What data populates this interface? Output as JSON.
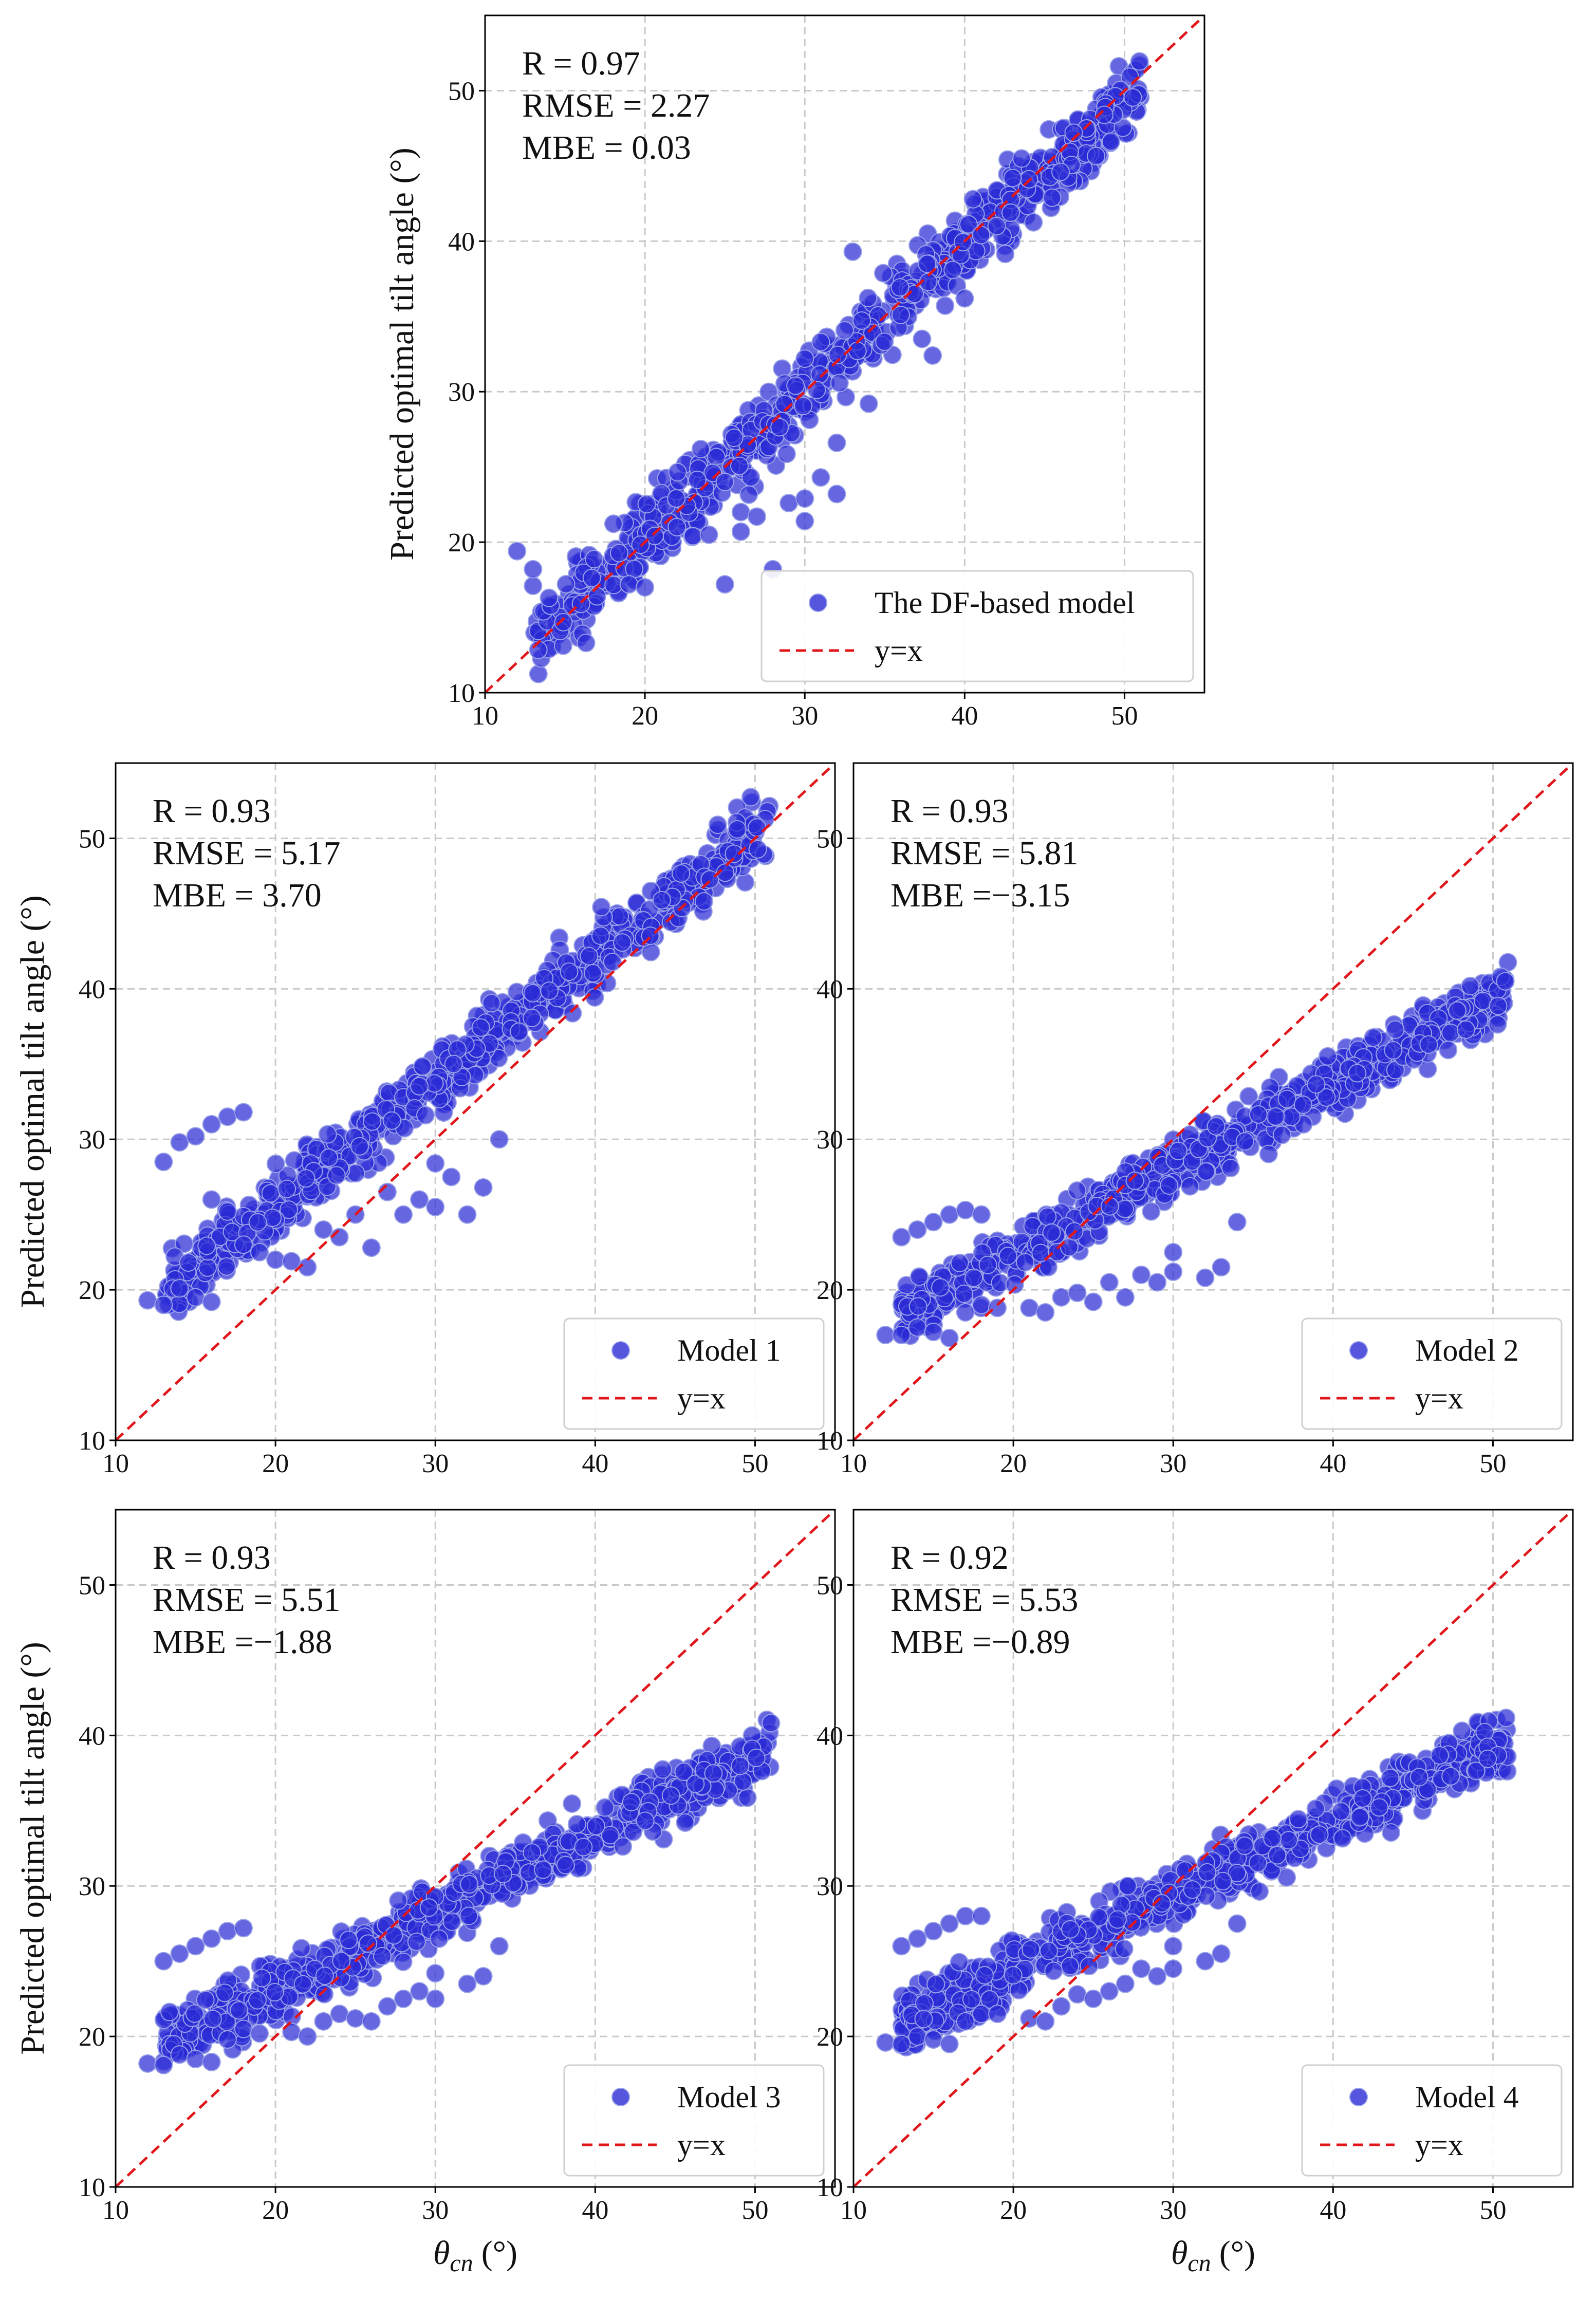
{
  "figure": {
    "xlabel_symbol": "θ",
    "xlabel_sub": "cn",
    "xlabel_unit": "(°)",
    "ylabel": "Predicted optimal tilt angle (°)"
  },
  "colors": {
    "points": "#2b2bd6",
    "point_edge": "#9aa2e8",
    "identity": "#e0161b",
    "grid": "#c9c9c9",
    "axis": "#000000"
  },
  "chart_data": [
    {
      "type": "scatter",
      "panel": "top",
      "title": "",
      "xlim": [
        10,
        55
      ],
      "ylim": [
        10,
        55
      ],
      "xticks": [
        10,
        20,
        30,
        40,
        50
      ],
      "yticks": [
        10,
        20,
        30,
        40,
        50
      ],
      "stats": {
        "r": "R = 0.97",
        "rmse": "RMSE = 2.27",
        "mbe": "MBE = 0.03"
      },
      "legend": {
        "series": "The DF-based model",
        "line": "y=x",
        "position": "lower-right"
      },
      "show_ylabel": true,
      "show_xlabel": false,
      "fit": {
        "slope": 0.96,
        "intercept": 1.2,
        "noise": 1.6
      },
      "outliers": [
        [
          12,
          19.4
        ],
        [
          13,
          17.1
        ],
        [
          14,
          16.3
        ],
        [
          13,
          18.2
        ],
        [
          16,
          15.9
        ],
        [
          17,
          16.4
        ],
        [
          19,
          17.2
        ],
        [
          20,
          17.0
        ],
        [
          22,
          21.0
        ],
        [
          23,
          20.4
        ],
        [
          24,
          20.5
        ],
        [
          25,
          17.2
        ],
        [
          25,
          24.0
        ],
        [
          26,
          22.0
        ],
        [
          26,
          20.7
        ],
        [
          27,
          21.7
        ],
        [
          28,
          18.2
        ],
        [
          29,
          22.6
        ],
        [
          30,
          21.4
        ],
        [
          31,
          24.3
        ],
        [
          30,
          22.9
        ],
        [
          32,
          26.6
        ],
        [
          32,
          23.2
        ],
        [
          33,
          39.3
        ],
        [
          31,
          33.3
        ],
        [
          34,
          29.2
        ],
        [
          36,
          35.1
        ],
        [
          38,
          32.4
        ],
        [
          40,
          36.2
        ],
        [
          42,
          41.0
        ],
        [
          43,
          44.2
        ],
        [
          46,
          44.6
        ]
      ]
    },
    {
      "type": "scatter",
      "panel": "model1",
      "title": "",
      "xlim": [
        10,
        55
      ],
      "ylim": [
        10,
        55
      ],
      "xticks": [
        10,
        20,
        30,
        40,
        50
      ],
      "yticks": [
        10,
        20,
        30,
        40,
        50
      ],
      "stats": {
        "r": "R = 0.93",
        "rmse": "RMSE = 5.17",
        "mbe": "MBE = 3.70"
      },
      "legend": {
        "series": "Model 1",
        "line": "y=x",
        "position": "lower-right"
      },
      "show_ylabel": true,
      "show_xlabel": false,
      "fit": {
        "slope": 0.82,
        "intercept": 9.3,
        "noise": 1.4
      },
      "outliers": [
        [
          12,
          19.3
        ],
        [
          13,
          19.0
        ],
        [
          14,
          20.1
        ],
        [
          15,
          19.5
        ],
        [
          16,
          19.2
        ],
        [
          13,
          28.5
        ],
        [
          14,
          29.8
        ],
        [
          15,
          30.2
        ],
        [
          16,
          31.0
        ],
        [
          17,
          31.5
        ],
        [
          18,
          31.8
        ],
        [
          16,
          26.0
        ],
        [
          17,
          25.2
        ],
        [
          18,
          23.0
        ],
        [
          19,
          22.5
        ],
        [
          20,
          22.0
        ],
        [
          21,
          21.9
        ],
        [
          22,
          21.5
        ],
        [
          23,
          24.0
        ],
        [
          24,
          23.5
        ],
        [
          25,
          25.0
        ],
        [
          26,
          22.8
        ],
        [
          27,
          26.5
        ],
        [
          28,
          25.0
        ],
        [
          29,
          26.0
        ],
        [
          30,
          25.5
        ],
        [
          31,
          27.5
        ],
        [
          32,
          25.0
        ],
        [
          33,
          26.8
        ],
        [
          34,
          30.0
        ],
        [
          30,
          28.4
        ]
      ]
    },
    {
      "type": "scatter",
      "panel": "model2",
      "title": "",
      "xlim": [
        10,
        55
      ],
      "ylim": [
        10,
        55
      ],
      "xticks": [
        10,
        20,
        30,
        40,
        50
      ],
      "yticks": [
        10,
        20,
        30,
        40,
        50
      ],
      "stats": {
        "r": "R = 0.93",
        "rmse": "RMSE = 5.81",
        "mbe": "MBE =−3.15"
      },
      "legend": {
        "series": "Model 2",
        "line": "y=x",
        "position": "lower-right"
      },
      "show_ylabel": false,
      "show_xlabel": false,
      "fit": {
        "slope": 0.56,
        "intercept": 11.3,
        "noise": 1.2
      },
      "outliers": [
        [
          12,
          17.0
        ],
        [
          13,
          17.0
        ],
        [
          14,
          17.5
        ],
        [
          15,
          17.2
        ],
        [
          16,
          16.8
        ],
        [
          13,
          23.5
        ],
        [
          14,
          24.0
        ],
        [
          15,
          24.5
        ],
        [
          16,
          25.0
        ],
        [
          17,
          25.3
        ],
        [
          18,
          25.0
        ],
        [
          17,
          18.5
        ],
        [
          18,
          19.0
        ],
        [
          19,
          18.8
        ],
        [
          21,
          18.8
        ],
        [
          22,
          18.5
        ],
        [
          23,
          19.5
        ],
        [
          24,
          19.8
        ],
        [
          25,
          19.2
        ],
        [
          26,
          20.5
        ],
        [
          27,
          19.5
        ],
        [
          28,
          21.0
        ],
        [
          29,
          20.5
        ],
        [
          30,
          21.2
        ],
        [
          32,
          20.8
        ],
        [
          33,
          21.5
        ],
        [
          34,
          24.5
        ],
        [
          30,
          22.5
        ]
      ]
    },
    {
      "type": "scatter",
      "panel": "model3",
      "title": "",
      "xlim": [
        10,
        55
      ],
      "ylim": [
        10,
        55
      ],
      "xticks": [
        10,
        20,
        30,
        40,
        50
      ],
      "yticks": [
        10,
        20,
        30,
        40,
        50
      ],
      "stats": {
        "r": "R = 0.93",
        "rmse": "RMSE = 5.51",
        "mbe": "MBE =−1.88"
      },
      "legend": {
        "series": "Model 3",
        "line": "y=x",
        "position": "lower-right"
      },
      "show_ylabel": true,
      "show_xlabel": true,
      "fit": {
        "slope": 0.52,
        "intercept": 12.6,
        "noise": 1.2
      },
      "outliers": [
        [
          12,
          18.2
        ],
        [
          13,
          18.1
        ],
        [
          14,
          18.8
        ],
        [
          15,
          18.5
        ],
        [
          16,
          18.3
        ],
        [
          13,
          25.0
        ],
        [
          14,
          25.5
        ],
        [
          15,
          26.0
        ],
        [
          16,
          26.5
        ],
        [
          17,
          27.0
        ],
        [
          18,
          27.2
        ],
        [
          17,
          19.8
        ],
        [
          18,
          20.5
        ],
        [
          19,
          20.2
        ],
        [
          21,
          20.3
        ],
        [
          22,
          20.0
        ],
        [
          23,
          21.0
        ],
        [
          24,
          21.5
        ],
        [
          25,
          21.2
        ],
        [
          26,
          21.0
        ],
        [
          27,
          22.0
        ],
        [
          28,
          22.5
        ],
        [
          29,
          23.0
        ],
        [
          30,
          22.5
        ],
        [
          32,
          23.5
        ],
        [
          33,
          24.0
        ],
        [
          34,
          26.0
        ],
        [
          30,
          24.2
        ]
      ]
    },
    {
      "type": "scatter",
      "panel": "model4",
      "title": "",
      "xlim": [
        10,
        55
      ],
      "ylim": [
        10,
        55
      ],
      "xticks": [
        10,
        20,
        30,
        40,
        50
      ],
      "yticks": [
        10,
        20,
        30,
        40,
        50
      ],
      "stats": {
        "r": "R = 0.92",
        "rmse": "RMSE = 5.53",
        "mbe": "MBE =−0.89"
      },
      "legend": {
        "series": "Model 4",
        "line": "y=x",
        "position": "lower-right"
      },
      "show_ylabel": false,
      "show_xlabel": true,
      "fit": {
        "slope": 0.49,
        "intercept": 14.6,
        "noise": 1.2
      },
      "outliers": [
        [
          12,
          19.6
        ],
        [
          13,
          19.5
        ],
        [
          14,
          20.0
        ],
        [
          15,
          19.8
        ],
        [
          16,
          19.5
        ],
        [
          13,
          26.0
        ],
        [
          14,
          26.5
        ],
        [
          15,
          27.0
        ],
        [
          16,
          27.5
        ],
        [
          17,
          28.0
        ],
        [
          18,
          28.0
        ],
        [
          17,
          21.0
        ],
        [
          18,
          21.5
        ],
        [
          19,
          21.5
        ],
        [
          21,
          21.2
        ],
        [
          22,
          21.0
        ],
        [
          23,
          22.0
        ],
        [
          24,
          22.8
        ],
        [
          25,
          22.5
        ],
        [
          26,
          23.0
        ],
        [
          27,
          23.5
        ],
        [
          28,
          24.5
        ],
        [
          29,
          24.0
        ],
        [
          30,
          24.5
        ],
        [
          32,
          25.0
        ],
        [
          33,
          25.5
        ],
        [
          34,
          27.5
        ],
        [
          30,
          26.0
        ]
      ]
    }
  ]
}
